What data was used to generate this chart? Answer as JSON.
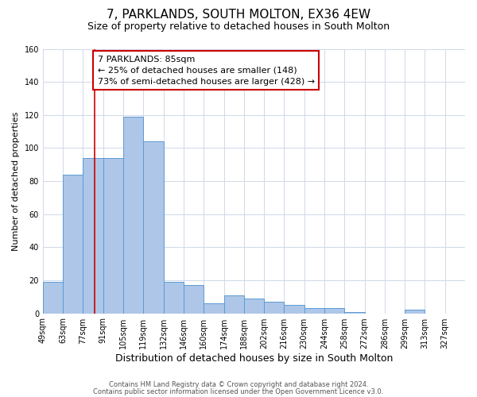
{
  "title": "7, PARKLANDS, SOUTH MOLTON, EX36 4EW",
  "subtitle": "Size of property relative to detached houses in South Molton",
  "xlabel": "Distribution of detached houses by size in South Molton",
  "ylabel": "Number of detached properties",
  "bin_labels": [
    "49sqm",
    "63sqm",
    "77sqm",
    "91sqm",
    "105sqm",
    "119sqm",
    "132sqm",
    "146sqm",
    "160sqm",
    "174sqm",
    "188sqm",
    "202sqm",
    "216sqm",
    "230sqm",
    "244sqm",
    "258sqm",
    "272sqm",
    "286sqm",
    "299sqm",
    "313sqm",
    "327sqm"
  ],
  "bar_values": [
    19,
    84,
    94,
    94,
    119,
    104,
    19,
    17,
    6,
    11,
    9,
    7,
    5,
    3,
    3,
    1,
    0,
    0,
    2,
    0,
    0
  ],
  "bar_color": "#aec6e8",
  "bar_edge_color": "#5b9bd5",
  "property_line_bin_index": 2.571,
  "annotation_title": "7 PARKLANDS: 85sqm",
  "annotation_line1": "← 25% of detached houses are smaller (148)",
  "annotation_line2": "73% of semi-detached houses are larger (428) →",
  "annotation_box_color": "#ffffff",
  "annotation_box_edge": "#cc0000",
  "vline_color": "#cc0000",
  "ylim": [
    0,
    160
  ],
  "yticks": [
    0,
    20,
    40,
    60,
    80,
    100,
    120,
    140,
    160
  ],
  "footnote1": "Contains HM Land Registry data © Crown copyright and database right 2024.",
  "footnote2": "Contains public sector information licensed under the Open Government Licence v3.0.",
  "bg_color": "#ffffff",
  "grid_color": "#d0d8e8",
  "title_fontsize": 11,
  "subtitle_fontsize": 9,
  "xlabel_fontsize": 9,
  "ylabel_fontsize": 8,
  "tick_fontsize": 7,
  "annotation_fontsize": 8,
  "footnote_fontsize": 6
}
